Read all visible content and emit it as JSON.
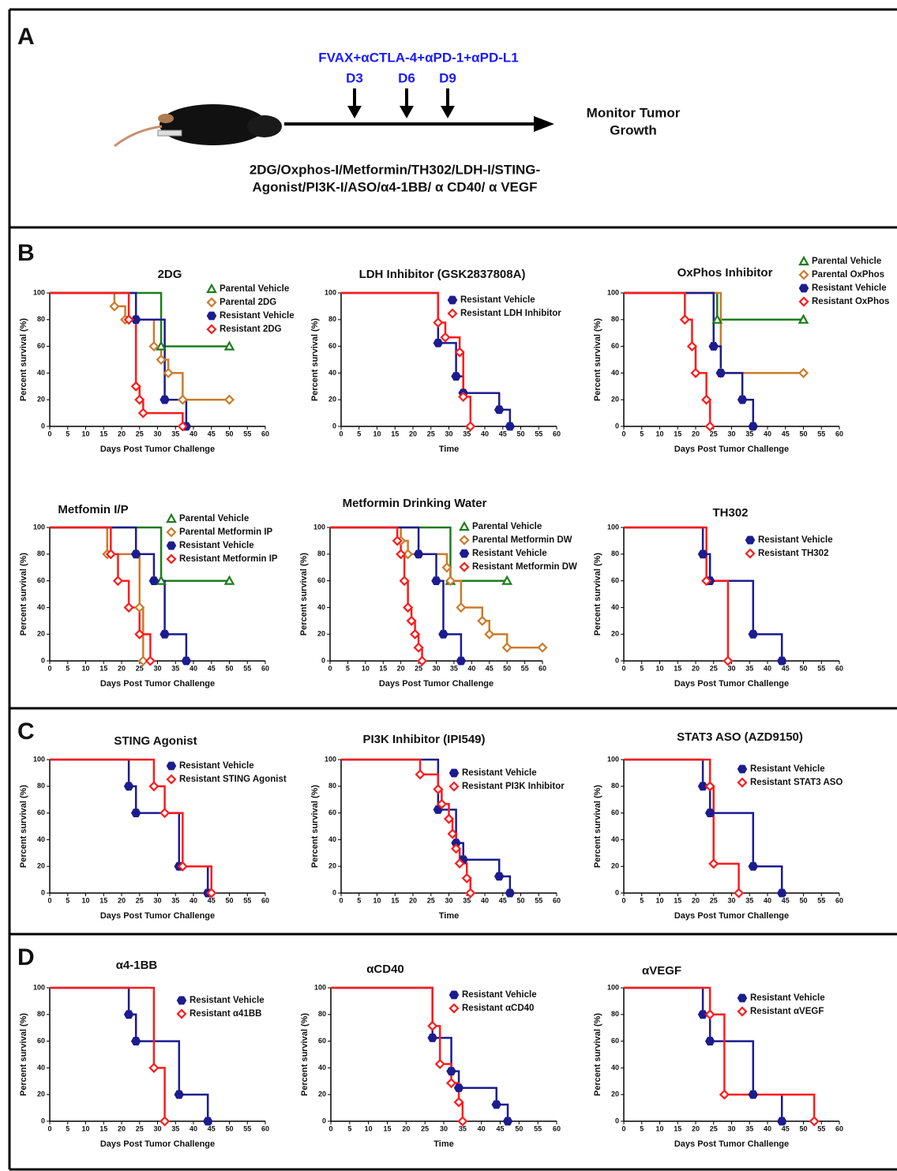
{
  "panel_labels": [
    "A",
    "B",
    "C",
    "D"
  ],
  "schematic": {
    "regimen": "FVAX+αCTLA-4+αPD-1+αPD-L1",
    "days": [
      "D3",
      "D6",
      "D9"
    ],
    "outcome": [
      "Monitor Tumor",
      "Growth"
    ],
    "treatments": [
      "2DG/Oxphos-I/Metformin/TH302/LDH-I/STING-",
      "Agonist/PI3K-I/ASO/α4-1BB/ α CD40/ α VEGF"
    ]
  },
  "chart_data": [
    {
      "type": "survival",
      "title": "2DG",
      "xlabel": "Days Post Tumor Challenge",
      "ylabel": "Percent survival (%)",
      "xlim": [
        0,
        60
      ],
      "xticks": [
        0,
        5,
        10,
        15,
        20,
        25,
        30,
        35,
        40,
        45,
        50,
        55,
        60
      ],
      "ylim": [
        0,
        100
      ],
      "yticks": [
        0,
        20,
        40,
        60,
        80,
        100
      ],
      "series": [
        {
          "name": "Parental Vehicle",
          "color": "#1e7b1e",
          "marker": "triangle",
          "x": [
            0,
            31,
            50
          ],
          "values": [
            100,
            60,
            60
          ]
        },
        {
          "name": "Parental 2DG",
          "color": "#cc7a29",
          "marker": "diamond",
          "x": [
            0,
            18,
            21,
            29,
            31,
            33,
            37,
            50
          ],
          "values": [
            100,
            90,
            80,
            60,
            50,
            40,
            20,
            20
          ]
        },
        {
          "name": "Resistant Vehicle",
          "color": "#1c1c8f",
          "marker": "hexagon",
          "x": [
            0,
            24,
            32,
            38
          ],
          "values": [
            100,
            80,
            20,
            0
          ]
        },
        {
          "name": "Resistant 2DG",
          "color": "#ff1a1a",
          "marker": "diamond",
          "x": [
            0,
            22,
            24,
            25,
            26,
            37
          ],
          "values": [
            100,
            80,
            30,
            20,
            10,
            0
          ]
        }
      ]
    },
    {
      "type": "survival",
      "title": "LDH Inhibitor (GSK2837808A)",
      "xlabel": "Time",
      "ylabel": "Percent survival (%)",
      "xlim": [
        0,
        60
      ],
      "xticks": [
        0,
        5,
        10,
        15,
        20,
        25,
        30,
        35,
        40,
        45,
        50,
        55,
        60
      ],
      "ylim": [
        0,
        100
      ],
      "yticks": [
        0,
        20,
        40,
        60,
        80,
        100
      ],
      "series": [
        {
          "name": "Resistant Vehicle",
          "color": "#1c1c8f",
          "marker": "hexagon",
          "x": [
            0,
            27,
            32,
            34,
            44,
            47
          ],
          "values": [
            100,
            62.5,
            37.5,
            25,
            12.5,
            0
          ]
        },
        {
          "name": "Resistant LDH Inhibitor",
          "color": "#ff1a1a",
          "marker": "diamond",
          "x": [
            0,
            27,
            29,
            33,
            34,
            36
          ],
          "values": [
            100,
            77.8,
            66.7,
            55.6,
            22.2,
            0
          ]
        }
      ]
    },
    {
      "type": "survival",
      "title": "OxPhos Inhibitor",
      "xlabel": "Days Post Tumor Challenge",
      "ylabel": "Percent survival (%)",
      "xlim": [
        0,
        60
      ],
      "xticks": [
        0,
        5,
        10,
        15,
        20,
        25,
        30,
        35,
        40,
        45,
        50,
        55,
        60
      ],
      "ylim": [
        0,
        100
      ],
      "yticks": [
        0,
        20,
        40,
        60,
        80,
        100
      ],
      "series": [
        {
          "name": "Parental Vehicle",
          "color": "#1e7b1e",
          "marker": "triangle",
          "x": [
            0,
            26,
            50
          ],
          "values": [
            100,
            80,
            80
          ]
        },
        {
          "name": "Parental OxPhos",
          "color": "#cc7a29",
          "marker": "diamond",
          "x": [
            0,
            27,
            50
          ],
          "values": [
            100,
            40,
            40
          ]
        },
        {
          "name": "Resistant Vehicle",
          "color": "#1c1c8f",
          "marker": "hexagon",
          "x": [
            0,
            25,
            27,
            33,
            36
          ],
          "values": [
            100,
            60,
            40,
            20,
            0
          ]
        },
        {
          "name": "Resistant OxPhos",
          "color": "#ff1a1a",
          "marker": "diamond",
          "x": [
            0,
            17,
            19,
            20,
            23,
            24
          ],
          "values": [
            100,
            80,
            60,
            40,
            20,
            0
          ]
        }
      ]
    },
    {
      "type": "survival",
      "title": "Metfomin I/P",
      "xlabel": "Days Post Tumor Challenge",
      "ylabel": "Percent survival (%)",
      "xlim": [
        0,
        60
      ],
      "xticks": [
        0,
        5,
        10,
        15,
        20,
        25,
        30,
        35,
        40,
        45,
        50,
        55,
        60
      ],
      "ylim": [
        0,
        100
      ],
      "yticks": [
        0,
        20,
        40,
        60,
        80,
        100
      ],
      "series": [
        {
          "name": "Parental Vehicle",
          "color": "#1e7b1e",
          "marker": "triangle",
          "x": [
            0,
            31,
            50
          ],
          "values": [
            100,
            60,
            60
          ]
        },
        {
          "name": "Parental Metformin IP",
          "color": "#cc7a29",
          "marker": "diamond",
          "x": [
            0,
            16,
            25,
            26
          ],
          "values": [
            100,
            80,
            40,
            0
          ]
        },
        {
          "name": "Resistant Vehicle",
          "color": "#1c1c8f",
          "marker": "hexagon",
          "x": [
            0,
            24,
            29,
            32,
            38
          ],
          "values": [
            100,
            80,
            60,
            20,
            0
          ]
        },
        {
          "name": "Resistant Metformin IP",
          "color": "#ff1a1a",
          "marker": "diamond",
          "x": [
            0,
            17,
            19,
            22,
            25,
            28
          ],
          "values": [
            100,
            80,
            60,
            40,
            20,
            0
          ]
        }
      ]
    },
    {
      "type": "survival",
      "title": "Metformin Drinking Water",
      "xlabel": "Days Post Tumor Challenge",
      "ylabel": "Percent survival (%)",
      "xlim": [
        0,
        60
      ],
      "xticks": [
        0,
        5,
        10,
        15,
        20,
        25,
        30,
        35,
        40,
        45,
        50,
        55,
        60
      ],
      "ylim": [
        0,
        100
      ],
      "yticks": [
        0,
        20,
        40,
        60,
        80,
        100
      ],
      "series": [
        {
          "name": "Parental Vehicle",
          "color": "#1e7b1e",
          "marker": "triangle",
          "x": [
            0,
            34,
            50
          ],
          "values": [
            100,
            60,
            60
          ]
        },
        {
          "name": "Parental Metformin DW",
          "color": "#cc7a29",
          "marker": "diamond",
          "x": [
            0,
            20,
            22,
            33,
            34,
            37,
            43,
            45,
            50,
            60
          ],
          "values": [
            100,
            90,
            80,
            70,
            60,
            40,
            30,
            20,
            10,
            10
          ]
        },
        {
          "name": "Resistant Vehicle",
          "color": "#1c1c8f",
          "marker": "hexagon",
          "x": [
            0,
            25,
            30,
            32,
            37
          ],
          "values": [
            100,
            80,
            60,
            20,
            0
          ]
        },
        {
          "name": "Resistant Metformin DW",
          "color": "#ff1a1a",
          "marker": "diamond",
          "x": [
            0,
            19,
            20,
            21,
            22,
            23,
            24,
            25,
            26
          ],
          "values": [
            100,
            90,
            80,
            60,
            40,
            30,
            20,
            10,
            0
          ]
        }
      ]
    },
    {
      "type": "survival",
      "title": "TH302",
      "xlabel": "Days Post Tumor Challenge",
      "ylabel": "Percent survival (%)",
      "xlim": [
        0,
        60
      ],
      "xticks": [
        0,
        5,
        10,
        15,
        20,
        25,
        30,
        35,
        40,
        45,
        50,
        55,
        60
      ],
      "ylim": [
        0,
        100
      ],
      "yticks": [
        0,
        20,
        40,
        60,
        80,
        100
      ],
      "series": [
        {
          "name": "Resistant Vehicle",
          "color": "#1c1c8f",
          "marker": "hexagon",
          "x": [
            0,
            22,
            24,
            36,
            44
          ],
          "values": [
            100,
            80,
            60,
            20,
            0
          ]
        },
        {
          "name": "Resistant TH302",
          "color": "#ff1a1a",
          "marker": "diamond",
          "x": [
            0,
            23,
            29
          ],
          "values": [
            100,
            60,
            0
          ]
        }
      ]
    },
    {
      "type": "survival",
      "title": "STING Agonist",
      "xlabel": "Days Post Tumor Challenge",
      "ylabel": "Percent survival (%)",
      "xlim": [
        0,
        60
      ],
      "xticks": [
        0,
        5,
        10,
        15,
        20,
        25,
        30,
        35,
        40,
        45,
        50,
        55,
        60
      ],
      "ylim": [
        0,
        100
      ],
      "yticks": [
        0,
        20,
        40,
        60,
        80,
        100
      ],
      "series": [
        {
          "name": "Resistant Vehicle",
          "color": "#1c1c8f",
          "marker": "hexagon",
          "x": [
            0,
            22,
            24,
            36,
            44
          ],
          "values": [
            100,
            80,
            60,
            20,
            0
          ]
        },
        {
          "name": "Resistant STING Agonist",
          "color": "#ff1a1a",
          "marker": "diamond",
          "x": [
            0,
            29,
            32,
            37,
            45
          ],
          "values": [
            100,
            80,
            60,
            20,
            0
          ]
        }
      ]
    },
    {
      "type": "survival",
      "title": "PI3K Inhibitor (IPI549)",
      "xlabel": "Time",
      "ylabel": "Percent survival (%)",
      "xlim": [
        0,
        60
      ],
      "xticks": [
        0,
        5,
        10,
        15,
        20,
        25,
        30,
        35,
        40,
        45,
        50,
        55,
        60
      ],
      "ylim": [
        0,
        100
      ],
      "yticks": [
        0,
        20,
        40,
        60,
        80,
        100
      ],
      "series": [
        {
          "name": "Resistant Vehicle",
          "color": "#1c1c8f",
          "marker": "hexagon",
          "x": [
            0,
            27,
            32,
            34,
            44,
            47
          ],
          "values": [
            100,
            62.5,
            37.5,
            25,
            12.5,
            0
          ]
        },
        {
          "name": "Resistant PI3K Inhibitor",
          "color": "#ff1a1a",
          "marker": "diamond",
          "x": [
            0,
            22,
            27,
            28,
            30,
            31,
            32,
            33,
            35,
            36
          ],
          "values": [
            100,
            88.9,
            77.8,
            66.7,
            55.6,
            44.4,
            33.3,
            22.2,
            11.1,
            0
          ]
        }
      ]
    },
    {
      "type": "survival",
      "title": "STAT3  ASO (AZD9150)",
      "xlabel": "Days Post Tumor Challenge",
      "ylabel": "Percent survival (%)",
      "xlim": [
        0,
        60
      ],
      "xticks": [
        0,
        5,
        10,
        15,
        20,
        25,
        30,
        35,
        40,
        45,
        50,
        55,
        60
      ],
      "ylim": [
        0,
        100
      ],
      "yticks": [
        0,
        20,
        40,
        60,
        80,
        100
      ],
      "series": [
        {
          "name": "Resistant Vehicle",
          "color": "#1c1c8f",
          "marker": "hexagon",
          "x": [
            0,
            22,
            24,
            36,
            44
          ],
          "values": [
            100,
            80,
            60,
            20,
            0
          ]
        },
        {
          "name": "Resistant STAT3 ASO",
          "color": "#ff1a1a",
          "marker": "diamond",
          "x": [
            0,
            24,
            25,
            32
          ],
          "values": [
            100,
            80,
            22,
            0
          ]
        }
      ]
    },
    {
      "type": "survival",
      "title": "α4-1BB",
      "xlabel": "Days Post Tumor Challenge",
      "ylabel": "Percent survival (%)",
      "xlim": [
        0,
        60
      ],
      "xticks": [
        0,
        5,
        10,
        15,
        20,
        25,
        30,
        35,
        40,
        45,
        50,
        55,
        60
      ],
      "ylim": [
        0,
        100
      ],
      "yticks": [
        0,
        20,
        40,
        60,
        80,
        100
      ],
      "series": [
        {
          "name": "Resistant Vehicle",
          "color": "#1c1c8f",
          "marker": "hexagon",
          "x": [
            0,
            22,
            24,
            36,
            44
          ],
          "values": [
            100,
            80,
            60,
            20,
            0
          ]
        },
        {
          "name": "Resistant α41BB",
          "color": "#ff1a1a",
          "marker": "diamond",
          "x": [
            0,
            29,
            32
          ],
          "values": [
            100,
            40,
            0
          ]
        }
      ]
    },
    {
      "type": "survival",
      "title": "αCD40",
      "xlabel": "Time",
      "ylabel": "Percent survival (%)",
      "xlim": [
        0,
        60
      ],
      "xticks": [
        0,
        5,
        10,
        15,
        20,
        25,
        30,
        35,
        40,
        45,
        50,
        55,
        60
      ],
      "ylim": [
        0,
        100
      ],
      "yticks": [
        0,
        20,
        40,
        60,
        80,
        100
      ],
      "series": [
        {
          "name": "Resistant Vehicle",
          "color": "#1c1c8f",
          "marker": "hexagon",
          "x": [
            0,
            27,
            32,
            34,
            44,
            47
          ],
          "values": [
            100,
            62.5,
            37.5,
            25,
            12.5,
            0
          ]
        },
        {
          "name": "Resistant αCD40",
          "color": "#ff1a1a",
          "marker": "diamond",
          "x": [
            0,
            27,
            29,
            32,
            34,
            35
          ],
          "values": [
            100,
            71.4,
            42.9,
            28.6,
            14.3,
            0
          ]
        }
      ]
    },
    {
      "type": "survival",
      "title": "αVEGF",
      "xlabel": "Days Post Tumor Challenge",
      "ylabel": "Percent survival (%)",
      "xlim": [
        0,
        60
      ],
      "xticks": [
        0,
        5,
        10,
        15,
        20,
        25,
        30,
        35,
        40,
        45,
        50,
        55,
        60
      ],
      "ylim": [
        0,
        100
      ],
      "yticks": [
        0,
        20,
        40,
        60,
        80,
        100
      ],
      "series": [
        {
          "name": "Resistant Vehicle",
          "color": "#1c1c8f",
          "marker": "hexagon",
          "x": [
            0,
            22,
            24,
            36,
            44
          ],
          "values": [
            100,
            80,
            60,
            20,
            0
          ]
        },
        {
          "name": "Resistant αVEGF",
          "color": "#ff1a1a",
          "marker": "diamond",
          "x": [
            0,
            24,
            28,
            53
          ],
          "values": [
            100,
            80,
            20,
            0
          ]
        }
      ]
    }
  ]
}
